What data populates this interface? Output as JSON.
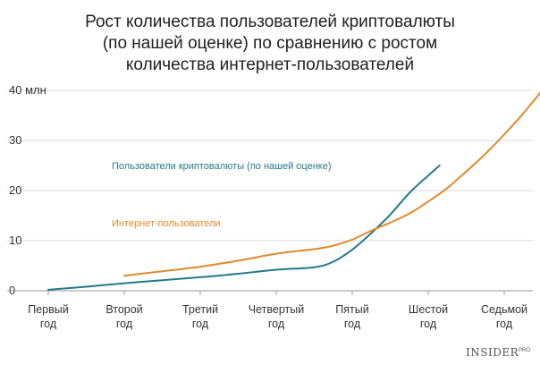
{
  "chart_data": {
    "type": "line",
    "title": [
      "Рост количества пользователей криптовалюты",
      "(по нашей оценке) по сравнению с ростом",
      "количества интернет-пользователей"
    ],
    "y_ticks": [
      "0",
      "10",
      "20",
      "30",
      "40 млн"
    ],
    "ylim": [
      0,
      40
    ],
    "grid": true,
    "categories": [
      [
        "Первый",
        "год"
      ],
      [
        "Второй",
        "год"
      ],
      [
        "Третий",
        "год"
      ],
      [
        "Четвертый",
        "год"
      ],
      [
        "Пятый",
        "год"
      ],
      [
        "Шестой",
        "год"
      ],
      [
        "Седьмой",
        "год"
      ]
    ],
    "series": [
      {
        "name": "Пользователи криптовалюты (по нашей оценке)",
        "color": "#227a8a",
        "points": [
          [
            0.0,
            0.2
          ],
          [
            0.5,
            0.8
          ],
          [
            1.0,
            1.5
          ],
          [
            1.5,
            2.1
          ],
          [
            2.0,
            2.7
          ],
          [
            2.5,
            3.4
          ],
          [
            3.0,
            4.2
          ],
          [
            3.5,
            4.7
          ],
          [
            3.75,
            5.8
          ],
          [
            4.0,
            8.2
          ],
          [
            4.25,
            11.5
          ],
          [
            4.5,
            15.2
          ],
          [
            4.75,
            19.5
          ],
          [
            5.0,
            23.0
          ],
          [
            5.15,
            25.0
          ]
        ]
      },
      {
        "name": "Интернет-пользователи",
        "color": "#e08a2c",
        "points": [
          [
            1.0,
            3.0
          ],
          [
            1.5,
            3.9
          ],
          [
            2.0,
            4.8
          ],
          [
            2.5,
            6.0
          ],
          [
            3.0,
            7.4
          ],
          [
            3.5,
            8.3
          ],
          [
            3.75,
            9.0
          ],
          [
            4.0,
            10.2
          ],
          [
            4.25,
            12.0
          ],
          [
            4.5,
            13.6
          ],
          [
            4.75,
            15.4
          ],
          [
            5.0,
            17.8
          ],
          [
            5.25,
            20.5
          ],
          [
            5.5,
            23.8
          ],
          [
            5.75,
            27.3
          ],
          [
            6.0,
            31.2
          ],
          [
            6.25,
            35.4
          ],
          [
            6.5,
            40.0
          ]
        ]
      }
    ]
  },
  "branding": {
    "name": "INSIDER",
    "suffix": "PRO"
  }
}
